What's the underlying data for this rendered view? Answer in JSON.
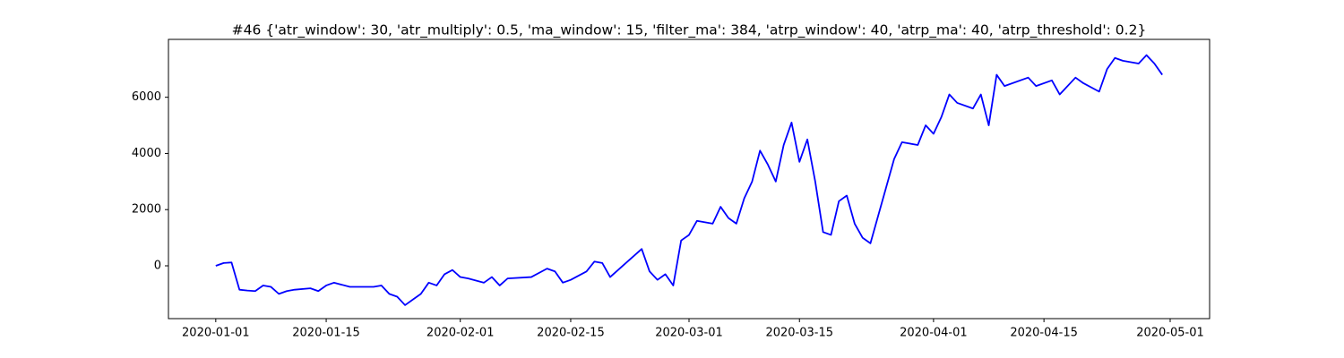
{
  "chart_data": {
    "type": "line",
    "title": "#46 {'atr_window': 30, 'atr_multiply': 0.5, 'ma_window': 15, 'filter_ma': 384, 'atrp_window': 40, 'atrp_ma': 40, 'atrp_threshold': 0.2}",
    "color": "#0000ff",
    "x": [
      "2020-01-01",
      "2020-01-02",
      "2020-01-03",
      "2020-01-04",
      "2020-01-05",
      "2020-01-06",
      "2020-01-07",
      "2020-01-08",
      "2020-01-09",
      "2020-01-10",
      "2020-01-11",
      "2020-01-13",
      "2020-01-14",
      "2020-01-15",
      "2020-01-16",
      "2020-01-18",
      "2020-01-21",
      "2020-01-22",
      "2020-01-23",
      "2020-01-24",
      "2020-01-25",
      "2020-01-26",
      "2020-01-27",
      "2020-01-28",
      "2020-01-29",
      "2020-01-30",
      "2020-01-31",
      "2020-02-01",
      "2020-02-02",
      "2020-02-04",
      "2020-02-05",
      "2020-02-06",
      "2020-02-07",
      "2020-02-10",
      "2020-02-12",
      "2020-02-13",
      "2020-02-14",
      "2020-02-15",
      "2020-02-17",
      "2020-02-18",
      "2020-02-19",
      "2020-02-20",
      "2020-02-22",
      "2020-02-24",
      "2020-02-25",
      "2020-02-26",
      "2020-02-27",
      "2020-02-28",
      "2020-02-29",
      "2020-03-01",
      "2020-03-02",
      "2020-03-04",
      "2020-03-05",
      "2020-03-06",
      "2020-03-07",
      "2020-03-08",
      "2020-03-09",
      "2020-03-10",
      "2020-03-11",
      "2020-03-12",
      "2020-03-13",
      "2020-03-14",
      "2020-03-15",
      "2020-03-16",
      "2020-03-17",
      "2020-03-18",
      "2020-03-19",
      "2020-03-20",
      "2020-03-21",
      "2020-03-22",
      "2020-03-23",
      "2020-03-24",
      "2020-03-25",
      "2020-03-26",
      "2020-03-27",
      "2020-03-28",
      "2020-03-30",
      "2020-03-31",
      "2020-04-01",
      "2020-04-02",
      "2020-04-03",
      "2020-04-04",
      "2020-04-06",
      "2020-04-07",
      "2020-04-08",
      "2020-04-09",
      "2020-04-10",
      "2020-04-13",
      "2020-04-14",
      "2020-04-16",
      "2020-04-17",
      "2020-04-19",
      "2020-04-20",
      "2020-04-22",
      "2020-04-23",
      "2020-04-24",
      "2020-04-25",
      "2020-04-27",
      "2020-04-28",
      "2020-04-29",
      "2020-04-30"
    ],
    "values": [
      0,
      100,
      120,
      -850,
      -880,
      -900,
      -700,
      -750,
      -1000,
      -900,
      -850,
      -800,
      -900,
      -700,
      -600,
      -750,
      -750,
      -700,
      -1000,
      -1100,
      -1400,
      -1200,
      -1000,
      -600,
      -700,
      -300,
      -150,
      -400,
      -450,
      -600,
      -400,
      -700,
      -450,
      -400,
      -100,
      -200,
      -600,
      -500,
      -200,
      150,
      100,
      -400,
      100,
      600,
      -200,
      -500,
      -300,
      -700,
      900,
      1100,
      1600,
      1500,
      2100,
      1700,
      1500,
      2400,
      3000,
      4100,
      3600,
      3000,
      4300,
      5100,
      3700,
      4500,
      3000,
      1200,
      1100,
      2300,
      2500,
      1500,
      1000,
      800,
      1800,
      2800,
      3800,
      4400,
      4300,
      5000,
      4700,
      5300,
      6100,
      5800,
      5600,
      6100,
      5000,
      6800,
      6400,
      6700,
      6400,
      6600,
      6100,
      6700,
      6500,
      6200,
      7000,
      7400,
      7300,
      7200,
      7500,
      7200,
      6800
    ],
    "xlim": [
      "2019-12-26",
      "2020-05-06"
    ],
    "xticks": [
      "2020-01-01",
      "2020-01-15",
      "2020-02-01",
      "2020-02-15",
      "2020-03-01",
      "2020-03-15",
      "2020-04-01",
      "2020-04-15",
      "2020-05-01"
    ],
    "ylim": [
      -1880,
      8060
    ],
    "yticks": [
      0,
      2000,
      4000,
      6000
    ]
  }
}
